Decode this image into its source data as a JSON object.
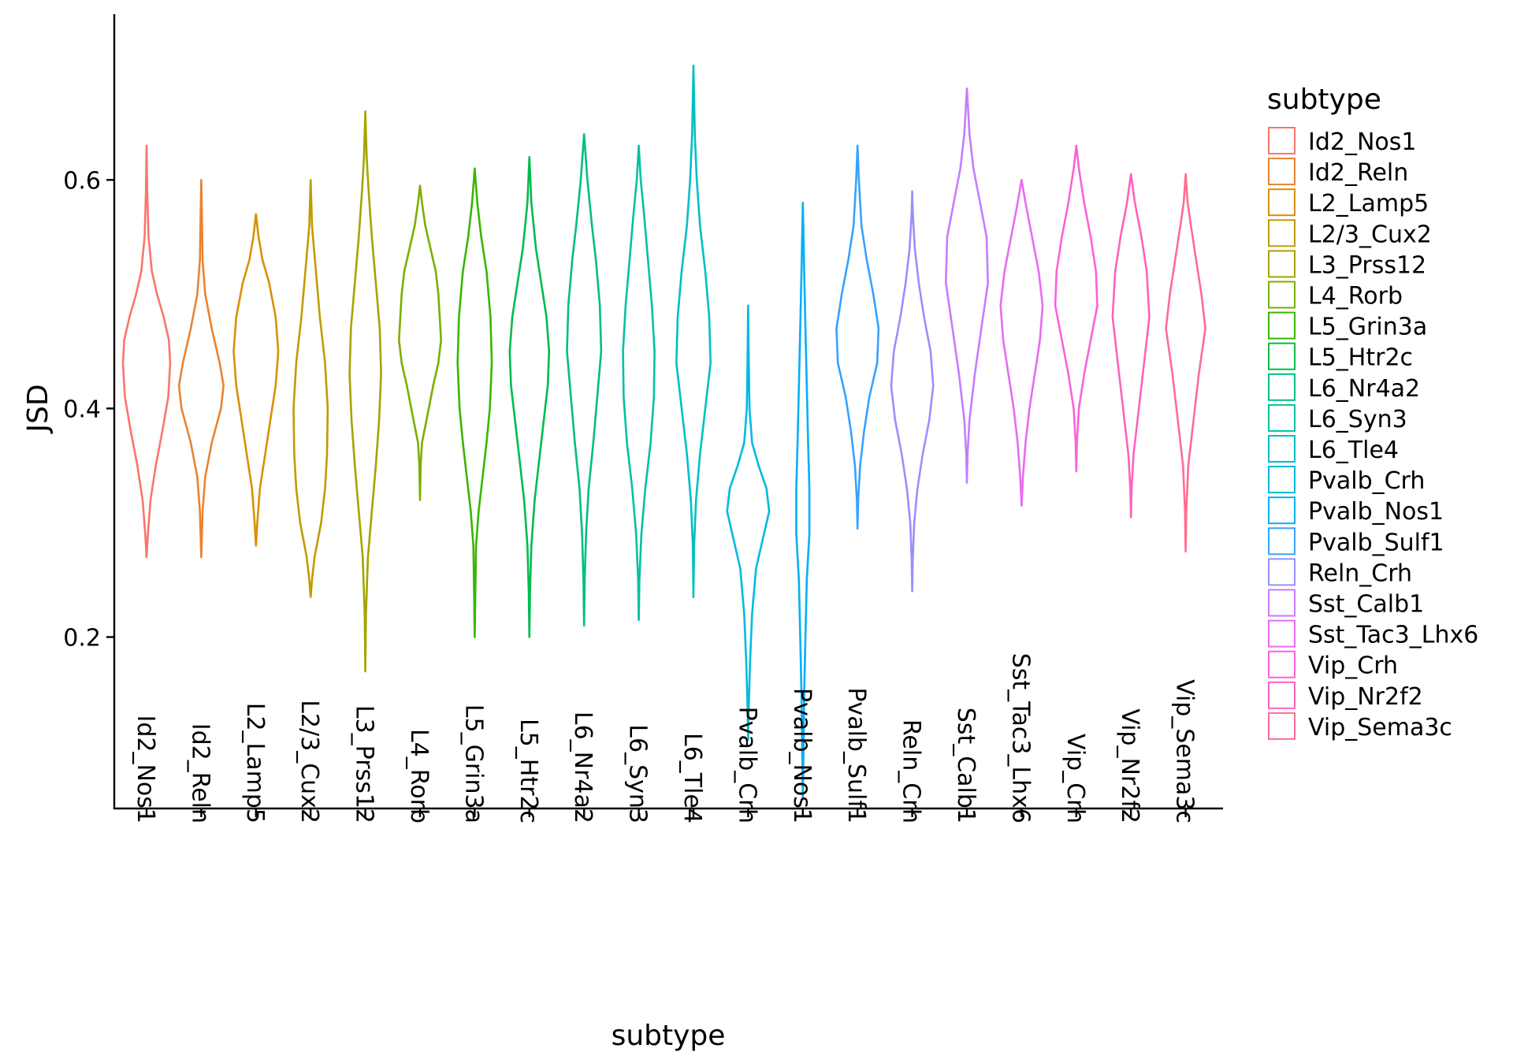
{
  "chart_data": {
    "type": "violin",
    "xlabel": "subtype",
    "ylabel": "JSD",
    "ylim": [
      0.05,
      0.745
    ],
    "y_ticks": [
      "0.2",
      "0.4",
      "0.6"
    ],
    "y_tick_values": [
      0.2,
      0.4,
      0.6
    ],
    "legend_title": "subtype",
    "legend_placement": "right",
    "grid": false,
    "categories": [
      "Id2_Nos1",
      "Id2_Reln",
      "L2_Lamp5",
      "L2/3_Cux2",
      "L3_Prss12",
      "L4_Rorb",
      "L5_Grin3a",
      "L5_Htr2c",
      "L6_Nr4a2",
      "L6_Syn3",
      "L6_Tle4",
      "Pvalb_Crh",
      "Pvalb_Nos1",
      "Pvalb_Sulf1",
      "Reln_Crh",
      "Sst_Calb1",
      "Sst_Tac3_Lhx6",
      "Vip_Crh",
      "Vip_Nr2f2",
      "Vip_Sema3c"
    ],
    "colors": [
      "#F8766D",
      "#EA8331",
      "#D89000",
      "#C09B00",
      "#A3A500",
      "#7CAE00",
      "#39B600",
      "#00BB4E",
      "#00BF7D",
      "#00C1A3",
      "#00BFC4",
      "#00BAE0",
      "#00B0F6",
      "#35A2FF",
      "#9590FF",
      "#C77CFF",
      "#E76BF3",
      "#FA62DB",
      "#FF62BC",
      "#FF6C91"
    ],
    "series": [
      {
        "name": "Id2_Nos1",
        "min": 0.27,
        "max": 0.63,
        "profile": [
          [
            0.27,
            0.0
          ],
          [
            0.29,
            0.02
          ],
          [
            0.32,
            0.06
          ],
          [
            0.35,
            0.14
          ],
          [
            0.38,
            0.24
          ],
          [
            0.41,
            0.33
          ],
          [
            0.44,
            0.36
          ],
          [
            0.46,
            0.34
          ],
          [
            0.48,
            0.26
          ],
          [
            0.5,
            0.16
          ],
          [
            0.52,
            0.08
          ],
          [
            0.55,
            0.03
          ],
          [
            0.59,
            0.01
          ],
          [
            0.63,
            0.0
          ]
        ]
      },
      {
        "name": "Id2_Reln",
        "min": 0.27,
        "max": 0.6,
        "profile": [
          [
            0.27,
            0.0
          ],
          [
            0.31,
            0.02
          ],
          [
            0.34,
            0.06
          ],
          [
            0.37,
            0.16
          ],
          [
            0.4,
            0.3
          ],
          [
            0.42,
            0.34
          ],
          [
            0.44,
            0.28
          ],
          [
            0.47,
            0.16
          ],
          [
            0.5,
            0.06
          ],
          [
            0.53,
            0.02
          ],
          [
            0.57,
            0.01
          ],
          [
            0.6,
            0.0
          ]
        ]
      },
      {
        "name": "L2_Lamp5",
        "min": 0.28,
        "max": 0.57,
        "profile": [
          [
            0.28,
            0.0
          ],
          [
            0.3,
            0.02
          ],
          [
            0.33,
            0.06
          ],
          [
            0.36,
            0.14
          ],
          [
            0.39,
            0.22
          ],
          [
            0.42,
            0.3
          ],
          [
            0.45,
            0.34
          ],
          [
            0.48,
            0.3
          ],
          [
            0.51,
            0.2
          ],
          [
            0.53,
            0.1
          ],
          [
            0.55,
            0.04
          ],
          [
            0.57,
            0.0
          ]
        ]
      },
      {
        "name": "L2/3_Cux2",
        "min": 0.235,
        "max": 0.6,
        "profile": [
          [
            0.235,
            0.0
          ],
          [
            0.25,
            0.02
          ],
          [
            0.27,
            0.06
          ],
          [
            0.3,
            0.16
          ],
          [
            0.33,
            0.22
          ],
          [
            0.36,
            0.25
          ],
          [
            0.4,
            0.26
          ],
          [
            0.44,
            0.22
          ],
          [
            0.48,
            0.14
          ],
          [
            0.52,
            0.08
          ],
          [
            0.56,
            0.02
          ],
          [
            0.6,
            0.0
          ]
        ]
      },
      {
        "name": "L3_Prss12",
        "min": 0.17,
        "max": 0.66,
        "profile": [
          [
            0.17,
            0.0
          ],
          [
            0.22,
            0.01
          ],
          [
            0.27,
            0.04
          ],
          [
            0.31,
            0.1
          ],
          [
            0.35,
            0.16
          ],
          [
            0.39,
            0.21
          ],
          [
            0.43,
            0.24
          ],
          [
            0.47,
            0.22
          ],
          [
            0.51,
            0.16
          ],
          [
            0.55,
            0.1
          ],
          [
            0.59,
            0.05
          ],
          [
            0.62,
            0.02
          ],
          [
            0.66,
            0.0
          ]
        ]
      },
      {
        "name": "L4_Rorb",
        "min": 0.32,
        "max": 0.595,
        "profile": [
          [
            0.32,
            0.0
          ],
          [
            0.35,
            0.01
          ],
          [
            0.37,
            0.03
          ],
          [
            0.39,
            0.1
          ],
          [
            0.42,
            0.2
          ],
          [
            0.44,
            0.28
          ],
          [
            0.46,
            0.32
          ],
          [
            0.48,
            0.3
          ],
          [
            0.5,
            0.28
          ],
          [
            0.52,
            0.24
          ],
          [
            0.54,
            0.16
          ],
          [
            0.56,
            0.08
          ],
          [
            0.58,
            0.03
          ],
          [
            0.595,
            0.0
          ]
        ]
      },
      {
        "name": "L5_Grin3a",
        "min": 0.2,
        "max": 0.61,
        "profile": [
          [
            0.2,
            0.0
          ],
          [
            0.24,
            0.01
          ],
          [
            0.28,
            0.02
          ],
          [
            0.31,
            0.06
          ],
          [
            0.34,
            0.12
          ],
          [
            0.37,
            0.18
          ],
          [
            0.4,
            0.23
          ],
          [
            0.44,
            0.26
          ],
          [
            0.48,
            0.24
          ],
          [
            0.52,
            0.18
          ],
          [
            0.55,
            0.1
          ],
          [
            0.58,
            0.04
          ],
          [
            0.61,
            0.0
          ]
        ]
      },
      {
        "name": "L5_Htr2c",
        "min": 0.2,
        "max": 0.62,
        "profile": [
          [
            0.2,
            0.0
          ],
          [
            0.24,
            0.01
          ],
          [
            0.28,
            0.03
          ],
          [
            0.32,
            0.08
          ],
          [
            0.36,
            0.16
          ],
          [
            0.39,
            0.22
          ],
          [
            0.42,
            0.28
          ],
          [
            0.45,
            0.3
          ],
          [
            0.48,
            0.26
          ],
          [
            0.51,
            0.18
          ],
          [
            0.54,
            0.1
          ],
          [
            0.58,
            0.03
          ],
          [
            0.62,
            0.0
          ]
        ]
      },
      {
        "name": "L6_Nr4a2",
        "min": 0.21,
        "max": 0.64,
        "profile": [
          [
            0.21,
            0.0
          ],
          [
            0.25,
            0.01
          ],
          [
            0.29,
            0.03
          ],
          [
            0.33,
            0.07
          ],
          [
            0.37,
            0.14
          ],
          [
            0.41,
            0.2
          ],
          [
            0.45,
            0.26
          ],
          [
            0.49,
            0.24
          ],
          [
            0.53,
            0.18
          ],
          [
            0.56,
            0.12
          ],
          [
            0.6,
            0.05
          ],
          [
            0.64,
            0.0
          ]
        ]
      },
      {
        "name": "L6_Syn3",
        "min": 0.215,
        "max": 0.63,
        "profile": [
          [
            0.215,
            0.0
          ],
          [
            0.25,
            0.01
          ],
          [
            0.29,
            0.04
          ],
          [
            0.33,
            0.1
          ],
          [
            0.37,
            0.18
          ],
          [
            0.41,
            0.23
          ],
          [
            0.45,
            0.24
          ],
          [
            0.49,
            0.2
          ],
          [
            0.53,
            0.14
          ],
          [
            0.57,
            0.08
          ],
          [
            0.6,
            0.03
          ],
          [
            0.63,
            0.0
          ]
        ]
      },
      {
        "name": "L6_Tle4",
        "min": 0.235,
        "max": 0.7,
        "profile": [
          [
            0.235,
            0.0
          ],
          [
            0.28,
            0.01
          ],
          [
            0.32,
            0.04
          ],
          [
            0.36,
            0.1
          ],
          [
            0.4,
            0.18
          ],
          [
            0.44,
            0.26
          ],
          [
            0.48,
            0.24
          ],
          [
            0.52,
            0.18
          ],
          [
            0.56,
            0.1
          ],
          [
            0.6,
            0.05
          ],
          [
            0.64,
            0.02
          ],
          [
            0.7,
            0.0
          ]
        ]
      },
      {
        "name": "Pvalb_Crh",
        "min": 0.11,
        "max": 0.49,
        "profile": [
          [
            0.11,
            0.0
          ],
          [
            0.14,
            0.01
          ],
          [
            0.18,
            0.03
          ],
          [
            0.22,
            0.06
          ],
          [
            0.26,
            0.12
          ],
          [
            0.29,
            0.24
          ],
          [
            0.31,
            0.32
          ],
          [
            0.33,
            0.28
          ],
          [
            0.35,
            0.16
          ],
          [
            0.37,
            0.06
          ],
          [
            0.4,
            0.02
          ],
          [
            0.44,
            0.01
          ],
          [
            0.49,
            0.0
          ]
        ]
      },
      {
        "name": "Pvalb_Nos1",
        "min": 0.06,
        "max": 0.58,
        "profile": [
          [
            0.06,
            0.0
          ],
          [
            0.1,
            0.01
          ],
          [
            0.15,
            0.02
          ],
          [
            0.2,
            0.04
          ],
          [
            0.25,
            0.06
          ],
          [
            0.29,
            0.1
          ],
          [
            0.33,
            0.1
          ],
          [
            0.37,
            0.08
          ],
          [
            0.42,
            0.06
          ],
          [
            0.47,
            0.04
          ],
          [
            0.52,
            0.02
          ],
          [
            0.58,
            0.0
          ]
        ]
      },
      {
        "name": "Pvalb_Sulf1",
        "min": 0.295,
        "max": 0.63,
        "profile": [
          [
            0.295,
            0.0
          ],
          [
            0.32,
            0.01
          ],
          [
            0.35,
            0.04
          ],
          [
            0.38,
            0.1
          ],
          [
            0.41,
            0.18
          ],
          [
            0.44,
            0.3
          ],
          [
            0.47,
            0.32
          ],
          [
            0.5,
            0.24
          ],
          [
            0.53,
            0.14
          ],
          [
            0.56,
            0.06
          ],
          [
            0.6,
            0.02
          ],
          [
            0.63,
            0.0
          ]
        ]
      },
      {
        "name": "Reln_Crh",
        "min": 0.24,
        "max": 0.59,
        "profile": [
          [
            0.24,
            0.0
          ],
          [
            0.27,
            0.01
          ],
          [
            0.3,
            0.03
          ],
          [
            0.33,
            0.08
          ],
          [
            0.36,
            0.16
          ],
          [
            0.39,
            0.26
          ],
          [
            0.42,
            0.32
          ],
          [
            0.45,
            0.28
          ],
          [
            0.48,
            0.18
          ],
          [
            0.51,
            0.1
          ],
          [
            0.54,
            0.04
          ],
          [
            0.57,
            0.01
          ],
          [
            0.59,
            0.0
          ]
        ]
      },
      {
        "name": "Sst_Calb1",
        "min": 0.335,
        "max": 0.68,
        "profile": [
          [
            0.335,
            0.0
          ],
          [
            0.36,
            0.01
          ],
          [
            0.39,
            0.04
          ],
          [
            0.43,
            0.12
          ],
          [
            0.47,
            0.22
          ],
          [
            0.51,
            0.32
          ],
          [
            0.55,
            0.3
          ],
          [
            0.58,
            0.2
          ],
          [
            0.61,
            0.1
          ],
          [
            0.64,
            0.04
          ],
          [
            0.68,
            0.0
          ]
        ]
      },
      {
        "name": "Sst_Tac3_Lhx6",
        "min": 0.315,
        "max": 0.6,
        "profile": [
          [
            0.315,
            0.0
          ],
          [
            0.34,
            0.02
          ],
          [
            0.37,
            0.06
          ],
          [
            0.4,
            0.12
          ],
          [
            0.43,
            0.2
          ],
          [
            0.46,
            0.28
          ],
          [
            0.49,
            0.32
          ],
          [
            0.52,
            0.26
          ],
          [
            0.55,
            0.16
          ],
          [
            0.58,
            0.06
          ],
          [
            0.6,
            0.0
          ]
        ]
      },
      {
        "name": "Vip_Crh",
        "min": 0.345,
        "max": 0.63,
        "profile": [
          [
            0.345,
            0.0
          ],
          [
            0.37,
            0.01
          ],
          [
            0.4,
            0.04
          ],
          [
            0.43,
            0.12
          ],
          [
            0.46,
            0.22
          ],
          [
            0.49,
            0.32
          ],
          [
            0.52,
            0.3
          ],
          [
            0.55,
            0.22
          ],
          [
            0.58,
            0.12
          ],
          [
            0.61,
            0.04
          ],
          [
            0.63,
            0.0
          ]
        ]
      },
      {
        "name": "Vip_Nr2f2",
        "min": 0.305,
        "max": 0.605,
        "profile": [
          [
            0.305,
            0.0
          ],
          [
            0.33,
            0.01
          ],
          [
            0.36,
            0.04
          ],
          [
            0.4,
            0.12
          ],
          [
            0.44,
            0.2
          ],
          [
            0.48,
            0.28
          ],
          [
            0.52,
            0.24
          ],
          [
            0.55,
            0.16
          ],
          [
            0.58,
            0.06
          ],
          [
            0.605,
            0.0
          ]
        ]
      },
      {
        "name": "Vip_Sema3c",
        "min": 0.275,
        "max": 0.605,
        "profile": [
          [
            0.275,
            0.0
          ],
          [
            0.31,
            0.01
          ],
          [
            0.35,
            0.04
          ],
          [
            0.39,
            0.12
          ],
          [
            0.43,
            0.2
          ],
          [
            0.47,
            0.3
          ],
          [
            0.5,
            0.24
          ],
          [
            0.53,
            0.16
          ],
          [
            0.56,
            0.08
          ],
          [
            0.58,
            0.03
          ],
          [
            0.605,
            0.0
          ]
        ]
      }
    ]
  }
}
